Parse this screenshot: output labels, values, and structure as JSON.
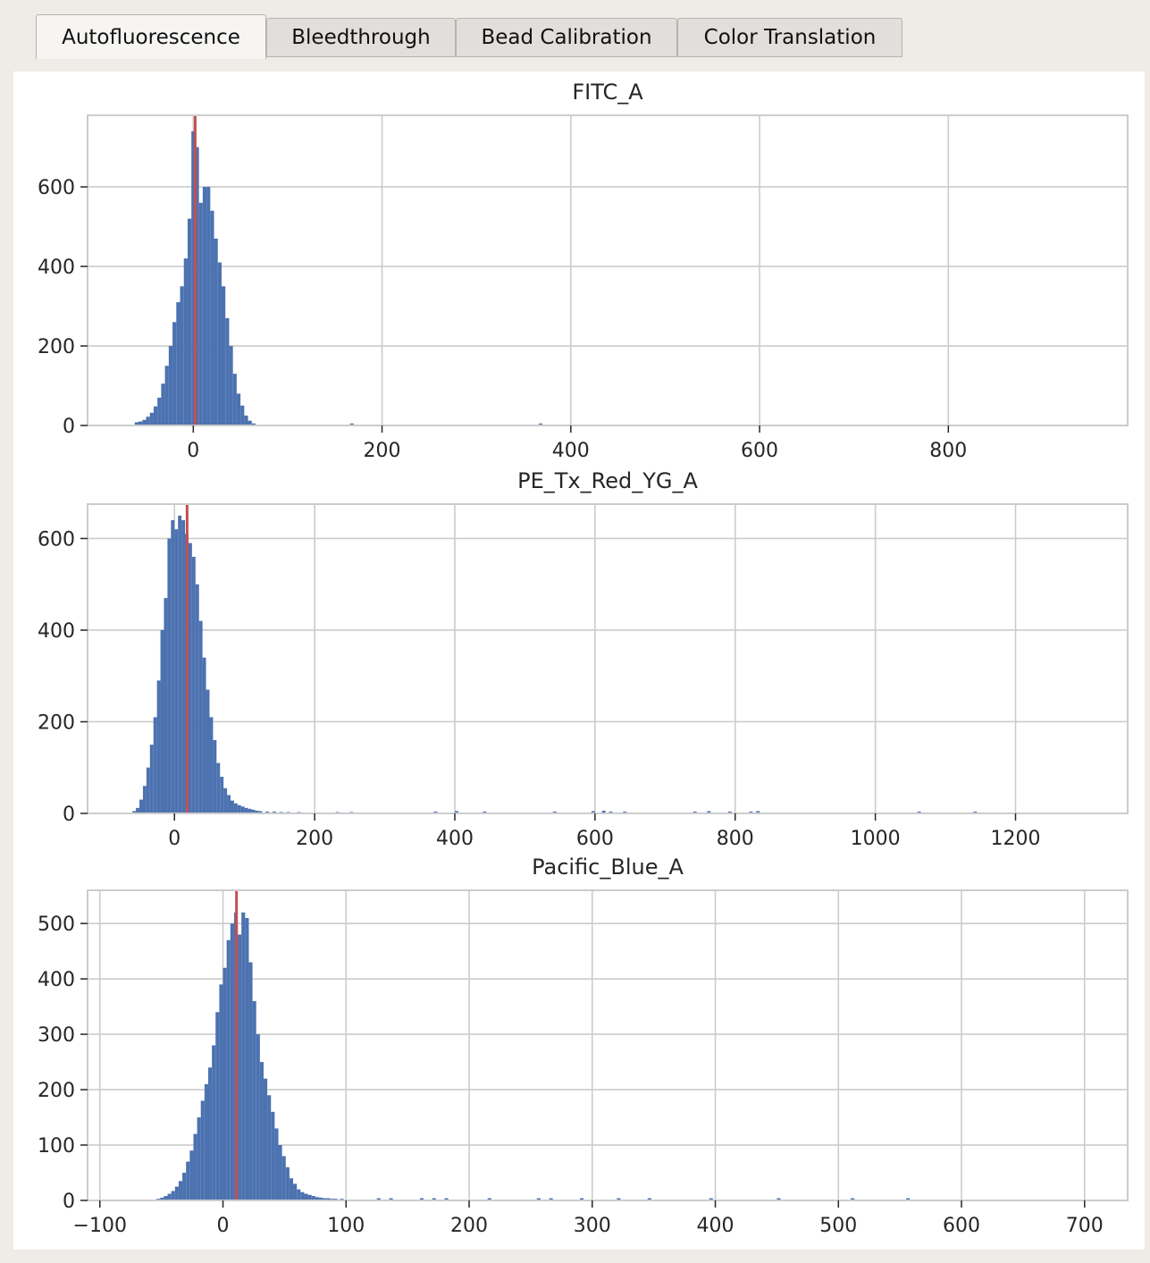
{
  "tabs": [
    {
      "label": "Autofluorescence",
      "active": true
    },
    {
      "label": "Bleedthrough",
      "active": false
    },
    {
      "label": "Bead Calibration",
      "active": false
    },
    {
      "label": "Color Translation",
      "active": false
    }
  ],
  "colors": {
    "bar": "#4c72b0",
    "marker": "#c44e52",
    "grid": "#cccccc",
    "background": "#ffffff"
  },
  "chart_data": [
    {
      "type": "bar",
      "title": "FITC_A",
      "xlabel": "",
      "ylabel": "",
      "grid": true,
      "xlim": [
        -112,
        990
      ],
      "ylim": [
        0,
        780
      ],
      "xticks": [
        0,
        200,
        400,
        600,
        800
      ],
      "yticks": [
        0,
        200,
        400,
        600
      ],
      "bin_width": 4,
      "bins": [
        [
          -62,
          8
        ],
        [
          -58,
          10
        ],
        [
          -54,
          14
        ],
        [
          -50,
          22
        ],
        [
          -46,
          32
        ],
        [
          -42,
          48
        ],
        [
          -38,
          70
        ],
        [
          -34,
          105
        ],
        [
          -30,
          150
        ],
        [
          -26,
          200
        ],
        [
          -22,
          260
        ],
        [
          -18,
          310
        ],
        [
          -14,
          350
        ],
        [
          -10,
          420
        ],
        [
          -6,
          520
        ],
        [
          -2,
          740
        ],
        [
          2,
          700
        ],
        [
          6,
          560
        ],
        [
          10,
          600
        ],
        [
          14,
          600
        ],
        [
          18,
          540
        ],
        [
          22,
          470
        ],
        [
          26,
          410
        ],
        [
          30,
          350
        ],
        [
          34,
          270
        ],
        [
          38,
          200
        ],
        [
          42,
          130
        ],
        [
          46,
          80
        ],
        [
          50,
          50
        ],
        [
          54,
          25
        ],
        [
          58,
          12
        ],
        [
          62,
          5
        ],
        [
          166,
          5
        ],
        [
          366,
          5
        ]
      ],
      "marker_x": 2
    },
    {
      "type": "bar",
      "title": "PE_Tx_Red_YG_A",
      "xlabel": "",
      "ylabel": "",
      "grid": true,
      "xlim": [
        -124,
        1360
      ],
      "ylim": [
        0,
        675
      ],
      "xticks": [
        0,
        200,
        400,
        600,
        800,
        1000,
        1200
      ],
      "yticks": [
        0,
        200,
        400,
        600
      ],
      "bin_width": 5,
      "bins": [
        [
          -60,
          5
        ],
        [
          -55,
          12
        ],
        [
          -50,
          30
        ],
        [
          -45,
          60
        ],
        [
          -40,
          100
        ],
        [
          -35,
          150
        ],
        [
          -30,
          210
        ],
        [
          -25,
          290
        ],
        [
          -20,
          400
        ],
        [
          -15,
          470
        ],
        [
          -10,
          600
        ],
        [
          -5,
          640
        ],
        [
          0,
          620
        ],
        [
          5,
          650
        ],
        [
          10,
          640
        ],
        [
          15,
          610
        ],
        [
          20,
          590
        ],
        [
          25,
          560
        ],
        [
          30,
          500
        ],
        [
          35,
          420
        ],
        [
          40,
          340
        ],
        [
          45,
          270
        ],
        [
          50,
          210
        ],
        [
          55,
          160
        ],
        [
          60,
          110
        ],
        [
          65,
          80
        ],
        [
          70,
          55
        ],
        [
          75,
          40
        ],
        [
          80,
          28
        ],
        [
          85,
          22
        ],
        [
          90,
          18
        ],
        [
          95,
          15
        ],
        [
          100,
          12
        ],
        [
          105,
          10
        ],
        [
          110,
          8
        ],
        [
          115,
          6
        ],
        [
          120,
          5
        ],
        [
          130,
          4
        ],
        [
          140,
          4
        ],
        [
          150,
          3
        ],
        [
          160,
          3
        ],
        [
          175,
          3
        ],
        [
          230,
          3
        ],
        [
          250,
          3
        ],
        [
          370,
          4
        ],
        [
          400,
          5
        ],
        [
          440,
          4
        ],
        [
          540,
          4
        ],
        [
          595,
          5
        ],
        [
          610,
          6
        ],
        [
          620,
          4
        ],
        [
          640,
          4
        ],
        [
          740,
          4
        ],
        [
          760,
          5
        ],
        [
          790,
          4
        ],
        [
          820,
          4
        ],
        [
          830,
          5
        ],
        [
          1060,
          4
        ],
        [
          1140,
          4
        ]
      ],
      "marker_x": 18
    },
    {
      "type": "bar",
      "title": "Pacific_Blue_A",
      "xlabel": "",
      "ylabel": "",
      "grid": true,
      "xlim": [
        -110,
        735
      ],
      "ylim": [
        0,
        560
      ],
      "xticks": [
        -100,
        0,
        100,
        200,
        300,
        400,
        500,
        600,
        700
      ],
      "yticks": [
        0,
        100,
        200,
        300,
        400,
        500
      ],
      "bin_width": 3,
      "bins": [
        [
          -54,
          3
        ],
        [
          -51,
          5
        ],
        [
          -48,
          8
        ],
        [
          -45,
          12
        ],
        [
          -42,
          17
        ],
        [
          -39,
          25
        ],
        [
          -36,
          35
        ],
        [
          -33,
          50
        ],
        [
          -30,
          70
        ],
        [
          -27,
          90
        ],
        [
          -24,
          120
        ],
        [
          -21,
          150
        ],
        [
          -18,
          180
        ],
        [
          -15,
          210
        ],
        [
          -12,
          240
        ],
        [
          -9,
          280
        ],
        [
          -6,
          340
        ],
        [
          -3,
          390
        ],
        [
          0,
          420
        ],
        [
          3,
          470
        ],
        [
          6,
          500
        ],
        [
          9,
          520
        ],
        [
          12,
          480
        ],
        [
          15,
          520
        ],
        [
          18,
          510
        ],
        [
          21,
          430
        ],
        [
          24,
          360
        ],
        [
          27,
          300
        ],
        [
          30,
          250
        ],
        [
          33,
          220
        ],
        [
          36,
          190
        ],
        [
          39,
          160
        ],
        [
          42,
          130
        ],
        [
          45,
          100
        ],
        [
          48,
          80
        ],
        [
          51,
          60
        ],
        [
          54,
          40
        ],
        [
          57,
          30
        ],
        [
          60,
          20
        ],
        [
          63,
          15
        ],
        [
          66,
          12
        ],
        [
          69,
          10
        ],
        [
          72,
          8
        ],
        [
          75,
          6
        ],
        [
          78,
          5
        ],
        [
          81,
          4
        ],
        [
          84,
          4
        ],
        [
          87,
          3
        ],
        [
          90,
          3
        ],
        [
          95,
          3
        ],
        [
          125,
          4
        ],
        [
          135,
          4
        ],
        [
          160,
          4
        ],
        [
          170,
          4
        ],
        [
          180,
          4
        ],
        [
          215,
          4
        ],
        [
          255,
          4
        ],
        [
          265,
          4
        ],
        [
          290,
          4
        ],
        [
          320,
          4
        ],
        [
          345,
          4
        ],
        [
          395,
          4
        ],
        [
          450,
          4
        ],
        [
          510,
          4
        ],
        [
          555,
          4
        ]
      ],
      "marker_x": 11
    }
  ]
}
